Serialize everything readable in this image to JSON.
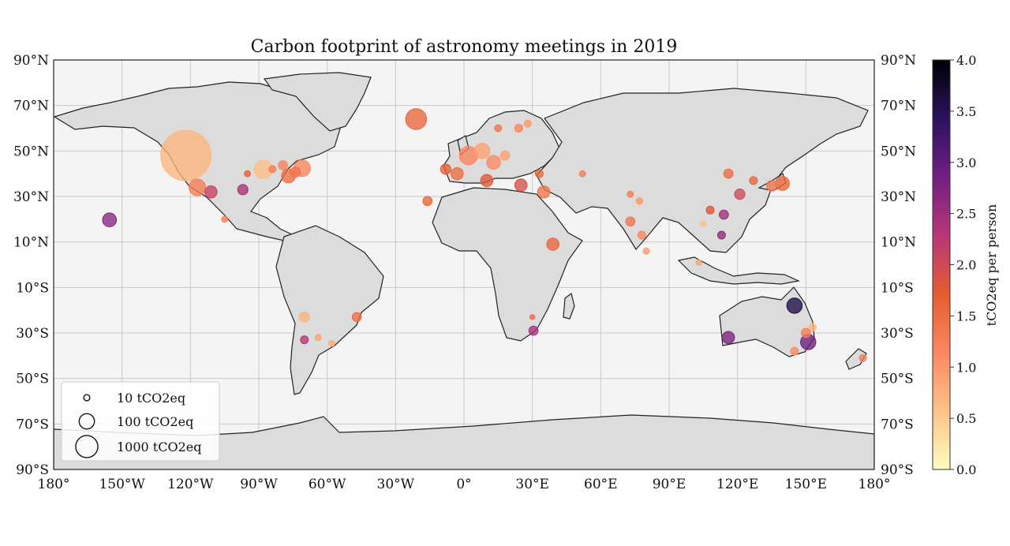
{
  "chart_data": {
    "type": "scatter",
    "title": "Carbon footprint of astronomy meetings in 2019",
    "x_ticks": [
      {
        "value": -180,
        "label": "180°"
      },
      {
        "value": -150,
        "label": "150°W"
      },
      {
        "value": -120,
        "label": "120°W"
      },
      {
        "value": -90,
        "label": "90°W"
      },
      {
        "value": -60,
        "label": "60°W"
      },
      {
        "value": -30,
        "label": "30°W"
      },
      {
        "value": 0,
        "label": "0°"
      },
      {
        "value": 30,
        "label": "30°E"
      },
      {
        "value": 60,
        "label": "60°E"
      },
      {
        "value": 90,
        "label": "90°E"
      },
      {
        "value": 120,
        "label": "120°E"
      },
      {
        "value": 150,
        "label": "150°E"
      },
      {
        "value": 180,
        "label": "180°"
      }
    ],
    "y_ticks": [
      {
        "value": 90,
        "label": "90°N"
      },
      {
        "value": 70,
        "label": "70°N"
      },
      {
        "value": 50,
        "label": "50°N"
      },
      {
        "value": 30,
        "label": "30°N"
      },
      {
        "value": 10,
        "label": "10°N"
      },
      {
        "value": -10,
        "label": "10°S"
      },
      {
        "value": -30,
        "label": "30°S"
      },
      {
        "value": -50,
        "label": "50°S"
      },
      {
        "value": -70,
        "label": "70°S"
      },
      {
        "value": -90,
        "label": "90°S"
      }
    ],
    "xlim": [
      -180,
      180
    ],
    "ylim": [
      -90,
      90
    ],
    "grid": true,
    "colorbar": {
      "label": "tCO2eq per person",
      "range": [
        0,
        4
      ],
      "ticks": [
        "0.0",
        "0.5",
        "1.0",
        "1.5",
        "2.0",
        "2.5",
        "3.0",
        "3.5",
        "4.0"
      ],
      "colormap": [
        "#fcfdbf",
        "#fec287",
        "#fb8861",
        "#e55c30",
        "#b73779",
        "#721f81",
        "#2c115f",
        "#000004"
      ]
    },
    "size_legend": {
      "placement": "bottom-left",
      "entries": [
        {
          "tco2": 10,
          "label": "10 tCO2eq"
        },
        {
          "tco2": 100,
          "label": "100 tCO2eq"
        },
        {
          "tco2": 1000,
          "label": "1000 tCO2eq"
        }
      ]
    },
    "points": [
      {
        "lon": -122,
        "lat": 48,
        "tco2": 1300,
        "per_person": 0.7
      },
      {
        "lon": -117,
        "lat": 34,
        "tco2": 120,
        "per_person": 1.3
      },
      {
        "lon": -111,
        "lat": 32,
        "tco2": 60,
        "per_person": 2.1
      },
      {
        "lon": -97,
        "lat": 33,
        "tco2": 40,
        "per_person": 2.4
      },
      {
        "lon": -105,
        "lat": 20,
        "tco2": 10,
        "per_person": 1.3
      },
      {
        "lon": -155.5,
        "lat": 19.7,
        "tco2": 80,
        "per_person": 2.7
      },
      {
        "lon": -88,
        "lat": 41.9,
        "tco2": 150,
        "per_person": 0.6
      },
      {
        "lon": -77,
        "lat": 39,
        "tco2": 80,
        "per_person": 1.5
      },
      {
        "lon": -71,
        "lat": 42.4,
        "tco2": 120,
        "per_person": 1.2
      },
      {
        "lon": -74,
        "lat": 40.7,
        "tco2": 40,
        "per_person": 1.4
      },
      {
        "lon": -79.4,
        "lat": 43.7,
        "tco2": 30,
        "per_person": 1.2
      },
      {
        "lon": -84,
        "lat": 42,
        "tco2": 15,
        "per_person": 1.3
      },
      {
        "lon": -95,
        "lat": 40,
        "tco2": 10,
        "per_person": 1.7
      },
      {
        "lon": -21,
        "lat": 64,
        "tco2": 200,
        "per_person": 1.6
      },
      {
        "lon": -47,
        "lat": -23,
        "tco2": 30,
        "per_person": 1.5
      },
      {
        "lon": -70,
        "lat": -23,
        "tco2": 40,
        "per_person": 0.7
      },
      {
        "lon": -70,
        "lat": -33,
        "tco2": 20,
        "per_person": 2.3
      },
      {
        "lon": -64,
        "lat": -32,
        "tco2": 10,
        "per_person": 0.9
      },
      {
        "lon": -58,
        "lat": -34.6,
        "tco2": 10,
        "per_person": 0.8
      },
      {
        "lon": 2,
        "lat": 48,
        "tco2": 150,
        "per_person": 1.2
      },
      {
        "lon": 8,
        "lat": 50,
        "tco2": 100,
        "per_person": 0.9
      },
      {
        "lon": 13,
        "lat": 45,
        "tco2": 80,
        "per_person": 1.1
      },
      {
        "lon": -3,
        "lat": 40,
        "tco2": 60,
        "per_person": 1.5
      },
      {
        "lon": -8,
        "lat": 42,
        "tco2": 40,
        "per_person": 1.7
      },
      {
        "lon": 10,
        "lat": 37,
        "tco2": 60,
        "per_person": 1.8
      },
      {
        "lon": 18,
        "lat": 48,
        "tco2": 30,
        "per_person": 0.9
      },
      {
        "lon": 24,
        "lat": 60,
        "tco2": 20,
        "per_person": 1.2
      },
      {
        "lon": 15,
        "lat": 60,
        "tco2": 15,
        "per_person": 1.4
      },
      {
        "lon": 28,
        "lat": 62,
        "tco2": 15,
        "per_person": 1.0
      },
      {
        "lon": 25,
        "lat": 35,
        "tco2": 60,
        "per_person": 1.9
      },
      {
        "lon": 35,
        "lat": 32,
        "tco2": 60,
        "per_person": 1.4
      },
      {
        "lon": 33,
        "lat": 40,
        "tco2": 20,
        "per_person": 1.6
      },
      {
        "lon": -16,
        "lat": 28,
        "tco2": 30,
        "per_person": 1.6
      },
      {
        "lon": 39,
        "lat": 9,
        "tco2": 60,
        "per_person": 1.6
      },
      {
        "lon": 30.5,
        "lat": -29,
        "tco2": 30,
        "per_person": 2.4
      },
      {
        "lon": 30,
        "lat": -23,
        "tco2": 5,
        "per_person": 1.5
      },
      {
        "lon": 52,
        "lat": 40,
        "tco2": 10,
        "per_person": 1.3
      },
      {
        "lon": 73,
        "lat": 31,
        "tco2": 10,
        "per_person": 1.3
      },
      {
        "lon": 77,
        "lat": 28,
        "tco2": 12,
        "per_person": 1.0
      },
      {
        "lon": 73,
        "lat": 19,
        "tco2": 30,
        "per_person": 1.4
      },
      {
        "lon": 78,
        "lat": 13,
        "tco2": 20,
        "per_person": 1.2
      },
      {
        "lon": 80,
        "lat": 6,
        "tco2": 10,
        "per_person": 1.0
      },
      {
        "lon": 105,
        "lat": 18,
        "tco2": 8,
        "per_person": 0.6
      },
      {
        "lon": 116,
        "lat": 40,
        "tco2": 30,
        "per_person": 1.5
      },
      {
        "lon": 121,
        "lat": 31,
        "tco2": 40,
        "per_person": 2.0
      },
      {
        "lon": 114,
        "lat": 22,
        "tco2": 30,
        "per_person": 2.5
      },
      {
        "lon": 108,
        "lat": 24,
        "tco2": 20,
        "per_person": 1.8
      },
      {
        "lon": 113,
        "lat": 13,
        "tco2": 20,
        "per_person": 2.6
      },
      {
        "lon": 103,
        "lat": 1,
        "tco2": 8,
        "per_person": 0.9
      },
      {
        "lon": 127,
        "lat": 37,
        "tco2": 20,
        "per_person": 1.6
      },
      {
        "lon": 139.7,
        "lat": 35.7,
        "tco2": 80,
        "per_person": 1.6
      },
      {
        "lon": 135,
        "lat": 34.7,
        "tco2": 40,
        "per_person": 1.4
      },
      {
        "lon": 145,
        "lat": -18,
        "tco2": 100,
        "per_person": 3.6
      },
      {
        "lon": 116,
        "lat": -32,
        "tco2": 60,
        "per_person": 2.8
      },
      {
        "lon": 151,
        "lat": -34,
        "tco2": 100,
        "per_person": 2.9
      },
      {
        "lon": 150,
        "lat": -30,
        "tco2": 30,
        "per_person": 1.3
      },
      {
        "lon": 153,
        "lat": -27.5,
        "tco2": 15,
        "per_person": 0.7
      },
      {
        "lon": 145,
        "lat": -38,
        "tco2": 20,
        "per_person": 1.1
      },
      {
        "lon": 175,
        "lat": -41,
        "tco2": 15,
        "per_person": 1.3
      }
    ]
  }
}
